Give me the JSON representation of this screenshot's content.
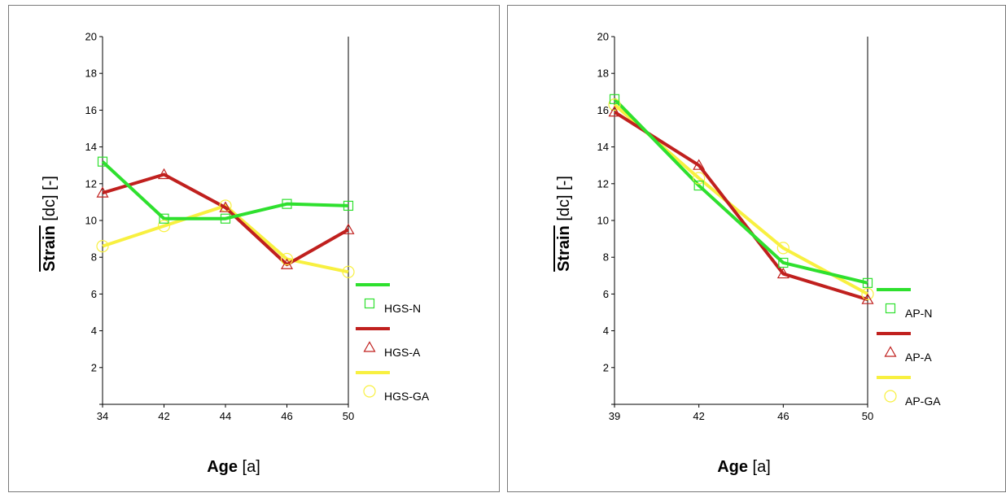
{
  "chart_data": [
    {
      "type": "line",
      "categories": [
        "34",
        "42",
        "44",
        "46",
        "50"
      ],
      "ylim": [
        0,
        20
      ],
      "yticks": [
        2,
        4,
        6,
        8,
        10,
        12,
        14,
        16,
        18,
        20
      ],
      "ylabel_main": "Strain",
      "ylabel_rest": " [dc] [-]",
      "xlabel_main": "Age",
      "xlabel_rest": "  [a]",
      "legend": "right",
      "series": [
        {
          "name": "HGS-N",
          "color": "#2ee02e",
          "marker": "square",
          "values": [
            13.2,
            10.1,
            10.1,
            10.9,
            10.8
          ]
        },
        {
          "name": "HGS-A",
          "color": "#c0201e",
          "marker": "triangle",
          "values": [
            11.5,
            12.5,
            10.7,
            7.6,
            9.5
          ]
        },
        {
          "name": "HGS-GA",
          "color": "#f8f040",
          "marker": "circle",
          "values": [
            8.6,
            9.7,
            10.8,
            7.9,
            7.2
          ]
        }
      ]
    },
    {
      "type": "line",
      "categories": [
        "39",
        "42",
        "46",
        "50"
      ],
      "ylim": [
        0,
        20
      ],
      "yticks": [
        2,
        4,
        6,
        8,
        10,
        12,
        14,
        16,
        18,
        20
      ],
      "ylabel_main": "Strain",
      "ylabel_rest": " [dc] [-]",
      "xlabel_main": "Age",
      "xlabel_rest": "  [a]",
      "legend": "right",
      "series": [
        {
          "name": "AP-N",
          "color": "#2ee02e",
          "marker": "square",
          "values": [
            16.6,
            11.9,
            7.7,
            6.6
          ]
        },
        {
          "name": "AP-A",
          "color": "#c0201e",
          "marker": "triangle",
          "values": [
            15.9,
            13.0,
            7.1,
            5.7
          ]
        },
        {
          "name": "AP-GA",
          "color": "#f8f040",
          "marker": "circle",
          "values": [
            16.3,
            12.3,
            8.5,
            6.0
          ]
        }
      ]
    }
  ]
}
